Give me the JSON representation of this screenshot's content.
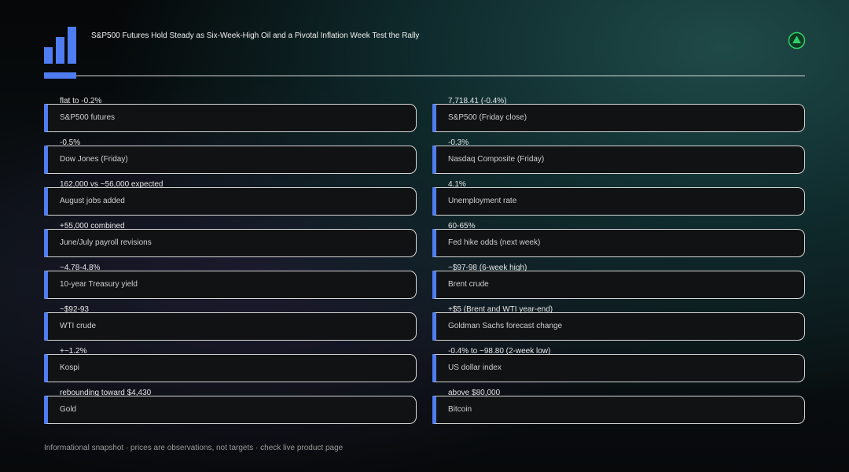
{
  "header": {
    "title": "S&P500 Futures Hold Steady as Six-Week-High Oil and a Pivotal Inflation Week Test the Rally"
  },
  "columns": [
    [
      {
        "value": "flat to -0.2%",
        "label": "S&P500 futures"
      },
      {
        "value": "-0.5%",
        "label": "Dow Jones (Friday)"
      },
      {
        "value": "162,000 vs ~56,000 expected",
        "label": "August jobs added"
      },
      {
        "value": "+55,000 combined",
        "label": "June/July payroll revisions"
      },
      {
        "value": "~4.78-4.8%",
        "label": "10-year Treasury yield"
      },
      {
        "value": "~$92-93",
        "label": "WTI crude"
      },
      {
        "value": "+~1.2%",
        "label": "Kospi"
      },
      {
        "value": "rebounding toward $4,430",
        "label": "Gold"
      }
    ],
    [
      {
        "value": "7,718.41 (-0.4%)",
        "label": "S&P500 (Friday close)"
      },
      {
        "value": "-0.3%",
        "label": "Nasdaq Composite (Friday)"
      },
      {
        "value": "4.1%",
        "label": "Unemployment rate"
      },
      {
        "value": "60-65%",
        "label": "Fed hike odds (next week)"
      },
      {
        "value": "~$97-98 (6-week high)",
        "label": "Brent crude"
      },
      {
        "value": "+$5 (Brent and WTI year-end)",
        "label": "Goldman Sachs forecast change"
      },
      {
        "value": "-0.4% to ~98.80 (2-week low)",
        "label": "US dollar index"
      },
      {
        "value": "above $80,000",
        "label": "Bitcoin"
      }
    ]
  ],
  "footer": {
    "note": "Informational snapshot · prices are observations, not targets · check live product page"
  }
}
